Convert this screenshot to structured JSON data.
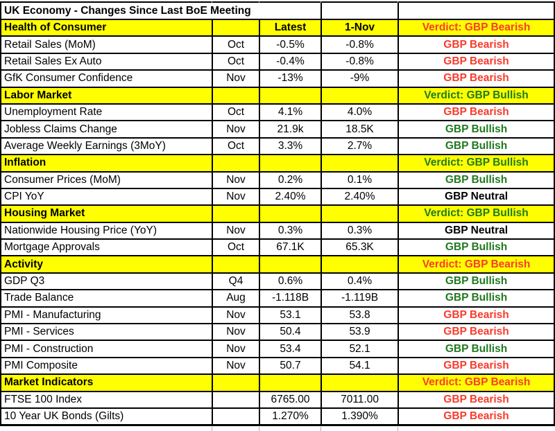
{
  "colors": {
    "bearish": "#f93b2b",
    "bullish": "#1f7a1f",
    "neutral": "#000000",
    "section_background": "#ffff00",
    "border": "#000000"
  },
  "chart_data": {
    "type": "table",
    "title": "UK Economy - Changes Since Last BoE Meeting",
    "column_headers": {
      "latest": "Latest",
      "previous": "1-Nov"
    },
    "sections": [
      {
        "label": "Health of Consumer",
        "verdict": "Verdict: GBP Bearish",
        "sentiment": "bearish",
        "shows_value_headers": true,
        "rows": [
          {
            "indicator": "Retail Sales (MoM)",
            "period": "Oct",
            "latest": "-0.5%",
            "previous": "-0.8%",
            "verdict": "GBP Bearish",
            "sentiment": "bearish"
          },
          {
            "indicator": "Retail Sales Ex Auto",
            "period": "Oct",
            "latest": "-0.4%",
            "previous": "-0.8%",
            "verdict": "GBP Bearish",
            "sentiment": "bearish"
          },
          {
            "indicator": "GfK Consumer Confidence",
            "period": "Nov",
            "latest": "-13%",
            "previous": "-9%",
            "verdict": "GBP Bearish",
            "sentiment": "bearish"
          }
        ]
      },
      {
        "label": "Labor Market",
        "verdict": "Verdict: GBP Bullish",
        "sentiment": "bullish",
        "shows_value_headers": false,
        "rows": [
          {
            "indicator": "Unemployment Rate",
            "period": "Oct",
            "latest": "4.1%",
            "previous": "4.0%",
            "verdict": "GBP Bearish",
            "sentiment": "bearish"
          },
          {
            "indicator": "Jobless Claims Change",
            "period": "Nov",
            "latest": "21.9k",
            "previous": "18.5K",
            "verdict": "GBP Bullish",
            "sentiment": "bullish"
          },
          {
            "indicator": "Average Weekly Earnings (3MoY)",
            "period": "Oct",
            "latest": "3.3%",
            "previous": "2.7%",
            "verdict": "GBP Bullish",
            "sentiment": "bullish"
          }
        ]
      },
      {
        "label": "Inflation",
        "verdict": "Verdict: GBP Bullish",
        "sentiment": "bullish",
        "shows_value_headers": false,
        "rows": [
          {
            "indicator": "Consumer Prices (MoM)",
            "period": "Nov",
            "latest": "0.2%",
            "previous": "0.1%",
            "verdict": "GBP Bullish",
            "sentiment": "bullish"
          },
          {
            "indicator": "CPI YoY",
            "period": "Nov",
            "latest": "2.40%",
            "previous": "2.40%",
            "verdict": "GBP Neutral",
            "sentiment": "neutral"
          }
        ]
      },
      {
        "label": "Housing Market",
        "verdict": "Verdict: GBP Bullish",
        "sentiment": "bullish",
        "shows_value_headers": false,
        "rows": [
          {
            "indicator": "Nationwide Housing Price (YoY)",
            "period": "Nov",
            "latest": "0.3%",
            "previous": "0.3%",
            "verdict": "GBP Neutral",
            "sentiment": "neutral"
          },
          {
            "indicator": "Mortgage Approvals",
            "period": "Oct",
            "latest": "67.1K",
            "previous": "65.3K",
            "verdict": "GBP Bullish",
            "sentiment": "bullish"
          }
        ]
      },
      {
        "label": "Activity",
        "verdict": "Verdict: GBP Bearish",
        "sentiment": "bearish",
        "shows_value_headers": false,
        "rows": [
          {
            "indicator": "GDP Q3",
            "period": "Q4",
            "latest": "0.6%",
            "previous": "0.4%",
            "verdict": "GBP Bullish",
            "sentiment": "bullish"
          },
          {
            "indicator": "Trade Balance",
            "period": "Aug",
            "latest": "-1.118B",
            "previous": "-1.119B",
            "verdict": "GBP Bullish",
            "sentiment": "bullish"
          },
          {
            "indicator": "PMI - Manufacturing",
            "period": "Nov",
            "latest": "53.1",
            "previous": "53.8",
            "verdict": "GBP Bearish",
            "sentiment": "bearish"
          },
          {
            "indicator": "PMI - Services",
            "period": "Nov",
            "latest": "50.4",
            "previous": "53.9",
            "verdict": "GBP Bearish",
            "sentiment": "bearish"
          },
          {
            "indicator": "PMI - Construction",
            "period": "Nov",
            "latest": "53.4",
            "previous": "52.1",
            "verdict": "GBP Bullish",
            "sentiment": "bullish"
          },
          {
            "indicator": "PMI Composite",
            "period": "Nov",
            "latest": "50.7",
            "previous": "54.1",
            "verdict": "GBP Bearish",
            "sentiment": "bearish"
          }
        ]
      },
      {
        "label": "Market Indicators",
        "verdict": "Verdict: GBP Bearish",
        "sentiment": "bearish",
        "shows_value_headers": false,
        "rows": [
          {
            "indicator": "FTSE 100 Index",
            "period": "",
            "latest": "6765.00",
            "previous": "7011.00",
            "verdict": "GBP Bearish",
            "sentiment": "bearish"
          },
          {
            "indicator": "10 Year UK Bonds (Gilts)",
            "period": "",
            "latest": "1.270%",
            "previous": "1.390%",
            "verdict": "GBP Bearish",
            "sentiment": "bearish"
          }
        ]
      }
    ]
  }
}
